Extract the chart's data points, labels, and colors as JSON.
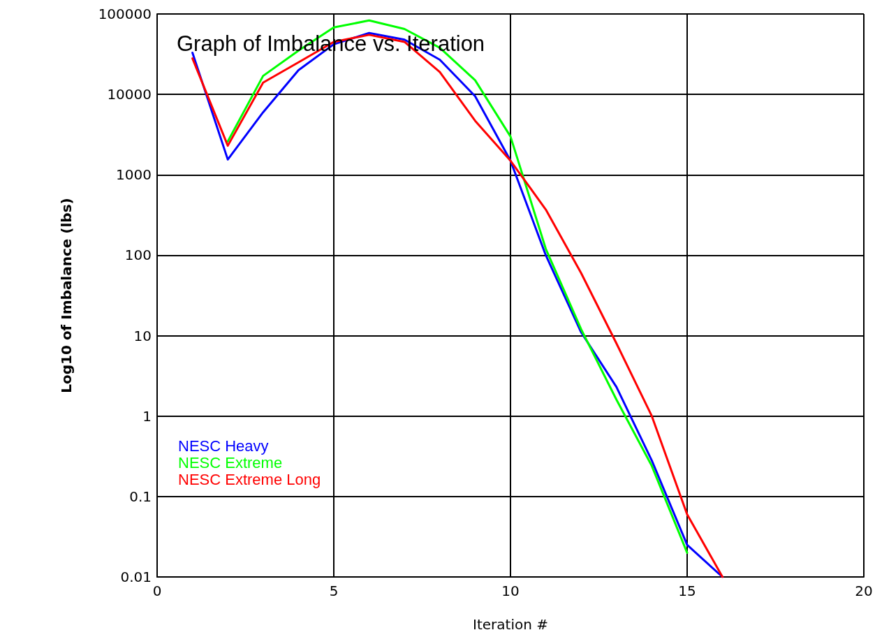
{
  "chart_data": {
    "type": "line",
    "title": "Graph of Imbalance vs. Iteration",
    "xlabel": "Iteration #",
    "ylabel": "Log10 of Imbalance (lbs)",
    "x": [
      1,
      2,
      3,
      4,
      5,
      6,
      7,
      8,
      9,
      10,
      11,
      12,
      13,
      14,
      15,
      16
    ],
    "series": [
      {
        "name": "NESC Heavy",
        "color": "#0000ff",
        "values": [
          33000,
          1550,
          6000,
          20000,
          42000,
          58000,
          48000,
          27000,
          9500,
          1500,
          100,
          11,
          2.3,
          0.28,
          0.025,
          0.01
        ]
      },
      {
        "name": "NESC Extreme",
        "color": "#00ff00",
        "values": [
          null,
          2600,
          17000,
          35000,
          68000,
          83000,
          65000,
          38000,
          15000,
          3000,
          120,
          12,
          1.6,
          0.24,
          0.02,
          null
        ]
      },
      {
        "name": "NESC Extreme Long",
        "color": "#ff0000",
        "values": [
          28000,
          2300,
          14000,
          25000,
          45000,
          55000,
          45000,
          19000,
          4700,
          1500,
          370,
          60,
          8,
          1,
          0.06,
          0.01
        ]
      }
    ],
    "xlim": [
      0,
      20
    ],
    "xticks": [
      0,
      5,
      10,
      15,
      20
    ],
    "ylim": [
      0.01,
      100000
    ],
    "yticks": [
      0.01,
      0.1,
      1,
      10,
      100,
      1000,
      10000,
      100000
    ],
    "log": "y",
    "grid": true,
    "legend": "bottom left",
    "marker": "none",
    "line_style": "solid"
  }
}
